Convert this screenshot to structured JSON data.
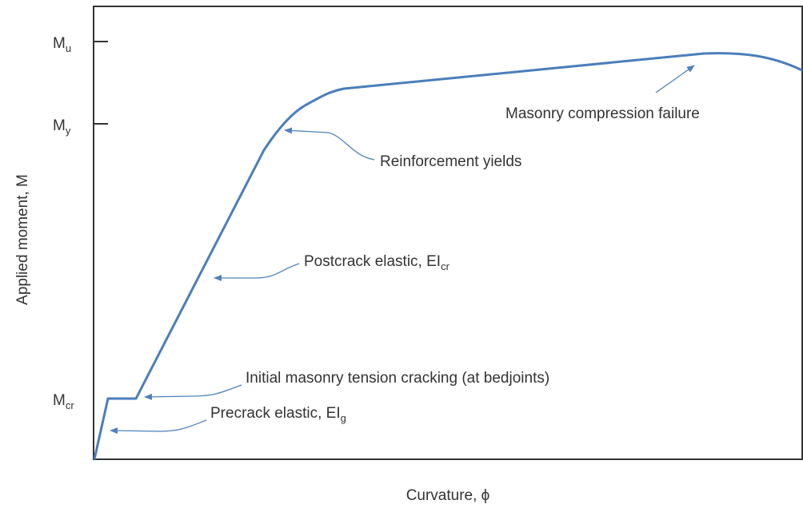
{
  "axes": {
    "y_label": "Applied moment, M",
    "x_label": "Curvature, ϕ"
  },
  "levels": [
    {
      "base": "M",
      "sub": "u"
    },
    {
      "base": "M",
      "sub": "y"
    },
    {
      "base": "M",
      "sub": "cr"
    }
  ],
  "annotations": [
    {
      "text": "Masonry compression failure"
    },
    {
      "text": "Reinforcement yields"
    },
    {
      "text": "Postcrack elastic, EI",
      "sub": "cr"
    },
    {
      "text": "Initial masonry tension cracking (at bedjoints)"
    },
    {
      "text": "Precrack elastic, EI",
      "sub": "g"
    }
  ]
}
